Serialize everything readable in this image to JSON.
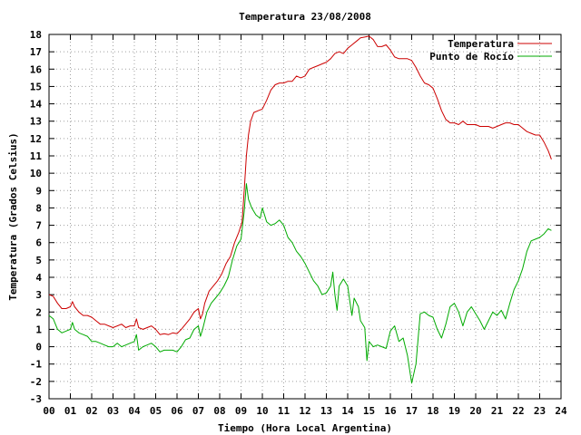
{
  "chart_data": {
    "type": "line",
    "title": "Temperatura 23/08/2008",
    "xlabel": "Tiempo (Hora Local Argentina)",
    "ylabel": "Temperatura (Grados Celsius)",
    "xlim": [
      0,
      24
    ],
    "ylim": [
      -3,
      18
    ],
    "x_ticks": [
      0,
      1,
      2,
      3,
      4,
      5,
      6,
      7,
      8,
      9,
      10,
      11,
      12,
      13,
      14,
      15,
      16,
      17,
      18,
      19,
      20,
      21,
      22,
      23,
      24
    ],
    "x_tick_labels": [
      "00",
      "01",
      "02",
      "03",
      "04",
      "05",
      "06",
      "07",
      "08",
      "09",
      "10",
      "11",
      "12",
      "13",
      "14",
      "15",
      "16",
      "17",
      "18",
      "19",
      "20",
      "21",
      "22",
      "23",
      "24"
    ],
    "y_ticks": [
      -3,
      -2,
      -1,
      0,
      1,
      2,
      3,
      4,
      5,
      6,
      7,
      8,
      9,
      10,
      11,
      12,
      13,
      14,
      15,
      16,
      17,
      18
    ],
    "y_tick_labels": [
      "-3",
      "-2",
      "-1",
      "0",
      "1",
      "2",
      "3",
      "4",
      "5",
      "6",
      "7",
      "8",
      "9",
      "10",
      "11",
      "12",
      "13",
      "14",
      "15",
      "16",
      "17",
      "18"
    ],
    "grid": true,
    "legend_position": "top-right",
    "series": [
      {
        "name": "Temperatura",
        "color": "#cc0000",
        "points": [
          [
            0.0,
            3.0
          ],
          [
            0.2,
            2.9
          ],
          [
            0.4,
            2.5
          ],
          [
            0.6,
            2.2
          ],
          [
            0.8,
            2.2
          ],
          [
            1.0,
            2.3
          ],
          [
            1.1,
            2.6
          ],
          [
            1.2,
            2.3
          ],
          [
            1.4,
            2.0
          ],
          [
            1.6,
            1.8
          ],
          [
            1.8,
            1.8
          ],
          [
            2.0,
            1.7
          ],
          [
            2.2,
            1.5
          ],
          [
            2.4,
            1.3
          ],
          [
            2.6,
            1.3
          ],
          [
            2.8,
            1.2
          ],
          [
            3.0,
            1.1
          ],
          [
            3.2,
            1.2
          ],
          [
            3.4,
            1.3
          ],
          [
            3.6,
            1.1
          ],
          [
            3.8,
            1.2
          ],
          [
            4.0,
            1.2
          ],
          [
            4.1,
            1.6
          ],
          [
            4.2,
            1.1
          ],
          [
            4.4,
            1.0
          ],
          [
            4.6,
            1.1
          ],
          [
            4.8,
            1.2
          ],
          [
            5.0,
            1.0
          ],
          [
            5.2,
            0.7
          ],
          [
            5.4,
            0.75
          ],
          [
            5.6,
            0.7
          ],
          [
            5.8,
            0.8
          ],
          [
            6.0,
            0.75
          ],
          [
            6.2,
            1.0
          ],
          [
            6.4,
            1.3
          ],
          [
            6.6,
            1.6
          ],
          [
            6.8,
            2.0
          ],
          [
            7.0,
            2.2
          ],
          [
            7.1,
            1.6
          ],
          [
            7.2,
            1.9
          ],
          [
            7.3,
            2.5
          ],
          [
            7.5,
            3.2
          ],
          [
            7.7,
            3.5
          ],
          [
            7.9,
            3.8
          ],
          [
            8.1,
            4.2
          ],
          [
            8.3,
            4.8
          ],
          [
            8.5,
            5.2
          ],
          [
            8.7,
            6.0
          ],
          [
            8.9,
            6.6
          ],
          [
            9.05,
            7.2
          ],
          [
            9.15,
            9.0
          ],
          [
            9.25,
            11.0
          ],
          [
            9.35,
            12.2
          ],
          [
            9.45,
            13.0
          ],
          [
            9.6,
            13.5
          ],
          [
            9.8,
            13.6
          ],
          [
            10.0,
            13.7
          ],
          [
            10.2,
            14.2
          ],
          [
            10.4,
            14.8
          ],
          [
            10.6,
            15.1
          ],
          [
            10.8,
            15.2
          ],
          [
            11.0,
            15.2
          ],
          [
            11.2,
            15.3
          ],
          [
            11.4,
            15.3
          ],
          [
            11.6,
            15.6
          ],
          [
            11.8,
            15.5
          ],
          [
            12.0,
            15.6
          ],
          [
            12.2,
            16.0
          ],
          [
            12.4,
            16.1
          ],
          [
            12.6,
            16.2
          ],
          [
            12.8,
            16.3
          ],
          [
            13.0,
            16.4
          ],
          [
            13.2,
            16.6
          ],
          [
            13.4,
            16.9
          ],
          [
            13.6,
            17.0
          ],
          [
            13.8,
            16.9
          ],
          [
            14.0,
            17.2
          ],
          [
            14.2,
            17.4
          ],
          [
            14.4,
            17.6
          ],
          [
            14.6,
            17.8
          ],
          [
            14.8,
            17.85
          ],
          [
            15.0,
            17.9
          ],
          [
            15.2,
            17.7
          ],
          [
            15.4,
            17.3
          ],
          [
            15.6,
            17.3
          ],
          [
            15.8,
            17.4
          ],
          [
            16.0,
            17.1
          ],
          [
            16.2,
            16.7
          ],
          [
            16.4,
            16.6
          ],
          [
            16.6,
            16.6
          ],
          [
            16.8,
            16.6
          ],
          [
            17.0,
            16.5
          ],
          [
            17.2,
            16.1
          ],
          [
            17.4,
            15.6
          ],
          [
            17.6,
            15.2
          ],
          [
            17.8,
            15.1
          ],
          [
            18.0,
            14.9
          ],
          [
            18.2,
            14.3
          ],
          [
            18.4,
            13.6
          ],
          [
            18.6,
            13.1
          ],
          [
            18.8,
            12.9
          ],
          [
            19.0,
            12.9
          ],
          [
            19.2,
            12.8
          ],
          [
            19.4,
            13.0
          ],
          [
            19.6,
            12.8
          ],
          [
            19.8,
            12.8
          ],
          [
            20.0,
            12.8
          ],
          [
            20.2,
            12.7
          ],
          [
            20.4,
            12.7
          ],
          [
            20.6,
            12.7
          ],
          [
            20.8,
            12.6
          ],
          [
            21.0,
            12.7
          ],
          [
            21.2,
            12.8
          ],
          [
            21.4,
            12.9
          ],
          [
            21.6,
            12.9
          ],
          [
            21.8,
            12.8
          ],
          [
            22.0,
            12.8
          ],
          [
            22.2,
            12.6
          ],
          [
            22.4,
            12.4
          ],
          [
            22.6,
            12.3
          ],
          [
            22.8,
            12.2
          ],
          [
            23.0,
            12.2
          ],
          [
            23.2,
            11.8
          ],
          [
            23.4,
            11.3
          ],
          [
            23.55,
            10.8
          ]
        ]
      },
      {
        "name": "Punto de Rocío",
        "color": "#00aa00",
        "points": [
          [
            0.0,
            1.8
          ],
          [
            0.2,
            1.6
          ],
          [
            0.4,
            1.0
          ],
          [
            0.6,
            0.8
          ],
          [
            0.8,
            0.9
          ],
          [
            1.0,
            1.0
          ],
          [
            1.1,
            1.4
          ],
          [
            1.2,
            1.0
          ],
          [
            1.4,
            0.8
          ],
          [
            1.6,
            0.7
          ],
          [
            1.8,
            0.6
          ],
          [
            2.0,
            0.3
          ],
          [
            2.2,
            0.3
          ],
          [
            2.4,
            0.2
          ],
          [
            2.6,
            0.1
          ],
          [
            2.8,
            0.0
          ],
          [
            3.0,
            0.0
          ],
          [
            3.2,
            0.2
          ],
          [
            3.4,
            0.0
          ],
          [
            3.6,
            0.1
          ],
          [
            3.8,
            0.2
          ],
          [
            4.0,
            0.3
          ],
          [
            4.1,
            0.7
          ],
          [
            4.2,
            -0.2
          ],
          [
            4.4,
            0.0
          ],
          [
            4.6,
            0.1
          ],
          [
            4.8,
            0.2
          ],
          [
            5.0,
            0.0
          ],
          [
            5.2,
            -0.3
          ],
          [
            5.4,
            -0.2
          ],
          [
            5.6,
            -0.2
          ],
          [
            5.8,
            -0.2
          ],
          [
            6.0,
            -0.3
          ],
          [
            6.2,
            0.0
          ],
          [
            6.4,
            0.4
          ],
          [
            6.6,
            0.5
          ],
          [
            6.8,
            1.0
          ],
          [
            7.0,
            1.2
          ],
          [
            7.1,
            0.6
          ],
          [
            7.2,
            1.0
          ],
          [
            7.4,
            2.0
          ],
          [
            7.6,
            2.5
          ],
          [
            7.8,
            2.8
          ],
          [
            8.0,
            3.1
          ],
          [
            8.2,
            3.5
          ],
          [
            8.4,
            4.0
          ],
          [
            8.6,
            5.0
          ],
          [
            8.8,
            5.8
          ],
          [
            9.0,
            6.2
          ],
          [
            9.15,
            7.8
          ],
          [
            9.25,
            9.4
          ],
          [
            9.35,
            8.5
          ],
          [
            9.5,
            8.0
          ],
          [
            9.7,
            7.6
          ],
          [
            9.9,
            7.4
          ],
          [
            10.0,
            8.0
          ],
          [
            10.2,
            7.2
          ],
          [
            10.4,
            7.0
          ],
          [
            10.6,
            7.1
          ],
          [
            10.8,
            7.3
          ],
          [
            11.0,
            7.0
          ],
          [
            11.2,
            6.3
          ],
          [
            11.4,
            6.0
          ],
          [
            11.6,
            5.5
          ],
          [
            11.8,
            5.2
          ],
          [
            12.0,
            4.8
          ],
          [
            12.2,
            4.3
          ],
          [
            12.4,
            3.8
          ],
          [
            12.6,
            3.5
          ],
          [
            12.8,
            3.0
          ],
          [
            13.0,
            3.1
          ],
          [
            13.2,
            3.5
          ],
          [
            13.3,
            4.3
          ],
          [
            13.4,
            3.0
          ],
          [
            13.5,
            2.1
          ],
          [
            13.6,
            3.5
          ],
          [
            13.8,
            3.9
          ],
          [
            14.0,
            3.5
          ],
          [
            14.1,
            2.6
          ],
          [
            14.2,
            1.8
          ],
          [
            14.3,
            2.8
          ],
          [
            14.5,
            2.3
          ],
          [
            14.6,
            1.5
          ],
          [
            14.8,
            1.1
          ],
          [
            14.9,
            -0.8
          ],
          [
            15.0,
            0.3
          ],
          [
            15.2,
            0.0
          ],
          [
            15.4,
            0.1
          ],
          [
            15.6,
            0.0
          ],
          [
            15.8,
            -0.1
          ],
          [
            16.0,
            0.9
          ],
          [
            16.2,
            1.2
          ],
          [
            16.4,
            0.3
          ],
          [
            16.6,
            0.5
          ],
          [
            16.8,
            -0.5
          ],
          [
            17.0,
            -2.1
          ],
          [
            17.2,
            -1.0
          ],
          [
            17.4,
            1.9
          ],
          [
            17.6,
            2.0
          ],
          [
            17.8,
            1.8
          ],
          [
            18.0,
            1.7
          ],
          [
            18.2,
            1.0
          ],
          [
            18.4,
            0.5
          ],
          [
            18.6,
            1.3
          ],
          [
            18.8,
            2.3
          ],
          [
            19.0,
            2.5
          ],
          [
            19.2,
            2.0
          ],
          [
            19.4,
            1.2
          ],
          [
            19.6,
            2.0
          ],
          [
            19.8,
            2.3
          ],
          [
            20.0,
            1.9
          ],
          [
            20.2,
            1.5
          ],
          [
            20.4,
            1.0
          ],
          [
            20.6,
            1.5
          ],
          [
            20.8,
            2.0
          ],
          [
            21.0,
            1.8
          ],
          [
            21.2,
            2.1
          ],
          [
            21.4,
            1.6
          ],
          [
            21.6,
            2.5
          ],
          [
            21.8,
            3.3
          ],
          [
            22.0,
            3.8
          ],
          [
            22.2,
            4.5
          ],
          [
            22.4,
            5.5
          ],
          [
            22.6,
            6.1
          ],
          [
            22.8,
            6.2
          ],
          [
            23.0,
            6.3
          ],
          [
            23.2,
            6.5
          ],
          [
            23.4,
            6.8
          ],
          [
            23.55,
            6.7
          ]
        ]
      }
    ]
  }
}
